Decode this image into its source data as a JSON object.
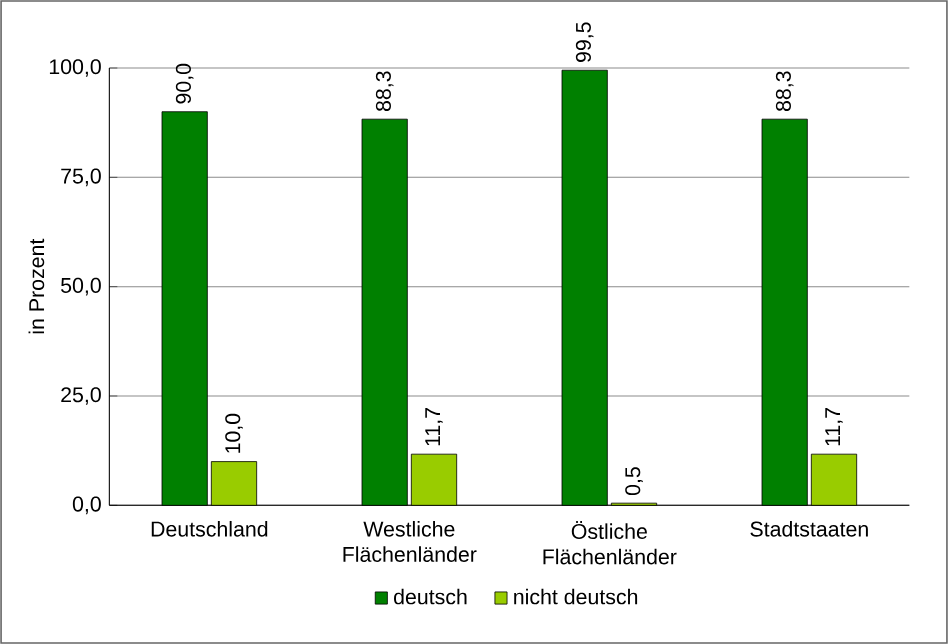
{
  "chart_data": {
    "type": "bar",
    "ylabel": "in Prozent",
    "categories": [
      "Deutschland",
      "Westliche Flächenländer",
      "Östliche Flächenländer",
      "Stadtstaaten"
    ],
    "series": [
      {
        "name": "deutsch",
        "color": "#008000",
        "values": [
          90.0,
          88.3,
          99.5,
          88.3
        ],
        "value_labels": [
          "90,0",
          "88,3",
          "99,5",
          "88,3"
        ]
      },
      {
        "name": "nicht deutsch",
        "color": "#99cc00",
        "values": [
          10.0,
          11.7,
          0.5,
          11.7
        ],
        "value_labels": [
          "10,0",
          "11,7",
          "0,5",
          "11,7"
        ]
      }
    ],
    "ylim": [
      0,
      100
    ],
    "yticks": [
      {
        "value": 0,
        "label": "0,0"
      },
      {
        "value": 25,
        "label": "25,0"
      },
      {
        "value": 50,
        "label": "50,0"
      },
      {
        "value": 75,
        "label": "75,0"
      },
      {
        "value": 100,
        "label": "100,0"
      }
    ],
    "grid": "y",
    "legend": "bottom"
  }
}
